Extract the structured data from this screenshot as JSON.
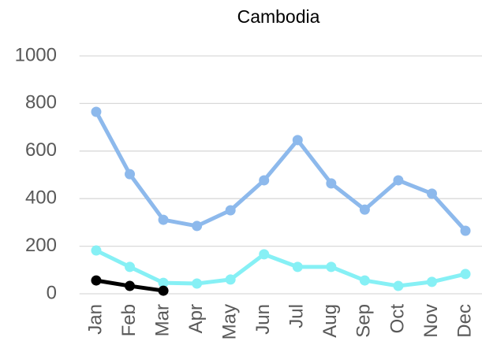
{
  "chart_data": {
    "type": "line",
    "title": "Cambodia",
    "categories": [
      "Jan",
      "Feb",
      "Mar",
      "Apr",
      "May",
      "Jun",
      "Jul",
      "Aug",
      "Sep",
      "Oct",
      "Nov",
      "Dec"
    ],
    "series": [
      {
        "color": "#8db9ec",
        "values": [
          765,
          503,
          311,
          285,
          351,
          477,
          646,
          464,
          354,
          477,
          421,
          265
        ]
      },
      {
        "color": "#86f0f5",
        "values": [
          182,
          113,
          46,
          43,
          60,
          166,
          113,
          113,
          56,
          33,
          50,
          83
        ]
      },
      {
        "color": "#000000",
        "values": [
          56,
          33,
          13,
          null,
          null,
          null,
          null,
          null,
          null,
          null,
          null,
          null
        ]
      }
    ],
    "ylim": [
      0,
      1000
    ],
    "yticks": [
      0,
      200,
      400,
      600,
      800,
      1000
    ],
    "grid": true
  }
}
